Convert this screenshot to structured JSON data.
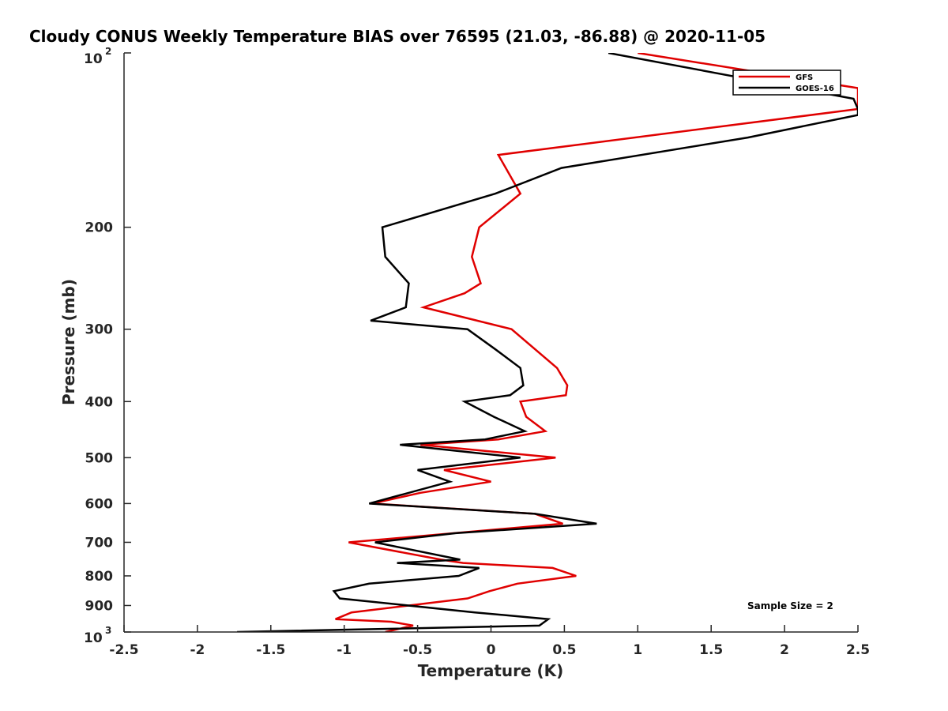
{
  "chart_data": {
    "type": "line",
    "title": "Cloudy CONUS Weekly Temperature BIAS over 76595 (21.03, -86.88) @ 2020-11-05",
    "xlabel": "Temperature (K)",
    "ylabel": "Pressure (mb)",
    "xlim": [
      -2.5,
      2.5
    ],
    "ylim": [
      100,
      1000
    ],
    "y_scale": "log",
    "y_reversed": true,
    "grid": false,
    "legend_position": "top-right",
    "x_ticks": [
      {
        "value": -2.5,
        "label": "-2.5"
      },
      {
        "value": -2,
        "label": "-2"
      },
      {
        "value": -1.5,
        "label": "-1.5"
      },
      {
        "value": -1,
        "label": "-1"
      },
      {
        "value": -0.5,
        "label": "-0.5"
      },
      {
        "value": 0,
        "label": "0"
      },
      {
        "value": 0.5,
        "label": "0.5"
      },
      {
        "value": 1,
        "label": "1"
      },
      {
        "value": 1.5,
        "label": "1.5"
      },
      {
        "value": 2,
        "label": "2"
      },
      {
        "value": 2.5,
        "label": "2.5"
      }
    ],
    "y_ticks": [
      {
        "value": 100,
        "label": "10",
        "sup": "2"
      },
      {
        "value": 200,
        "label": "200"
      },
      {
        "value": 300,
        "label": "300"
      },
      {
        "value": 400,
        "label": "400"
      },
      {
        "value": 500,
        "label": "500"
      },
      {
        "value": 600,
        "label": "600"
      },
      {
        "value": 700,
        "label": "700"
      },
      {
        "value": 800,
        "label": "800"
      },
      {
        "value": 900,
        "label": "900"
      },
      {
        "value": 1000,
        "label": "10",
        "sup": "3"
      }
    ],
    "series": [
      {
        "name": "GFS",
        "color": "#e00000",
        "points": [
          [
            1.0,
            100
          ],
          [
            2.5,
            115
          ],
          [
            2.5,
            125
          ],
          [
            0.05,
            150
          ],
          [
            0.2,
            175
          ],
          [
            -0.08,
            200
          ],
          [
            -0.13,
            225
          ],
          [
            -0.07,
            250
          ],
          [
            -0.18,
            260
          ],
          [
            -0.46,
            275
          ],
          [
            0.14,
            300
          ],
          [
            0.45,
            350
          ],
          [
            0.52,
            375
          ],
          [
            0.51,
            390
          ],
          [
            0.2,
            400
          ],
          [
            0.24,
            425
          ],
          [
            0.37,
            450
          ],
          [
            0.05,
            465
          ],
          [
            -0.48,
            475
          ],
          [
            0.44,
            500
          ],
          [
            -0.32,
            525
          ],
          [
            -0.0,
            550
          ],
          [
            -0.48,
            575
          ],
          [
            -0.81,
            600
          ],
          [
            0.3,
            625
          ],
          [
            0.49,
            650
          ],
          [
            -0.97,
            700
          ],
          [
            -0.34,
            750
          ],
          [
            -0.19,
            760
          ],
          [
            0.42,
            775
          ],
          [
            0.58,
            800
          ],
          [
            0.18,
            825
          ],
          [
            -0.01,
            850
          ],
          [
            -0.16,
            875
          ],
          [
            -0.95,
            925
          ],
          [
            -1.06,
            950
          ],
          [
            -0.68,
            960
          ],
          [
            -0.53,
            975
          ],
          [
            -0.72,
            1000
          ]
        ]
      },
      {
        "name": "GOES-16",
        "color": "#000000",
        "points": [
          [
            0.8,
            100
          ],
          [
            2.47,
            120
          ],
          [
            2.5,
            125
          ],
          [
            2.5,
            128
          ],
          [
            1.75,
            140
          ],
          [
            0.48,
            158
          ],
          [
            0.03,
            175
          ],
          [
            -0.74,
            200
          ],
          [
            -0.72,
            225
          ],
          [
            -0.56,
            250
          ],
          [
            -0.58,
            275
          ],
          [
            -0.82,
            290
          ],
          [
            -0.16,
            300
          ],
          [
            0.03,
            325
          ],
          [
            0.2,
            350
          ],
          [
            0.22,
            375
          ],
          [
            0.13,
            390
          ],
          [
            -0.18,
            400
          ],
          [
            0.02,
            425
          ],
          [
            0.23,
            450
          ],
          [
            -0.04,
            465
          ],
          [
            -0.62,
            475
          ],
          [
            0.2,
            500
          ],
          [
            -0.5,
            525
          ],
          [
            -0.28,
            550
          ],
          [
            -0.83,
            600
          ],
          [
            0.3,
            625
          ],
          [
            0.72,
            650
          ],
          [
            -0.24,
            675
          ],
          [
            -0.79,
            700
          ],
          [
            -0.21,
            750
          ],
          [
            -0.64,
            760
          ],
          [
            -0.08,
            775
          ],
          [
            -0.22,
            800
          ],
          [
            -0.83,
            825
          ],
          [
            -1.07,
            850
          ],
          [
            -1.03,
            875
          ],
          [
            -0.11,
            925
          ],
          [
            0.39,
            950
          ],
          [
            0.33,
            975
          ],
          [
            -1.73,
            1000
          ]
        ]
      }
    ],
    "annotation": "Sample Size = 2"
  }
}
